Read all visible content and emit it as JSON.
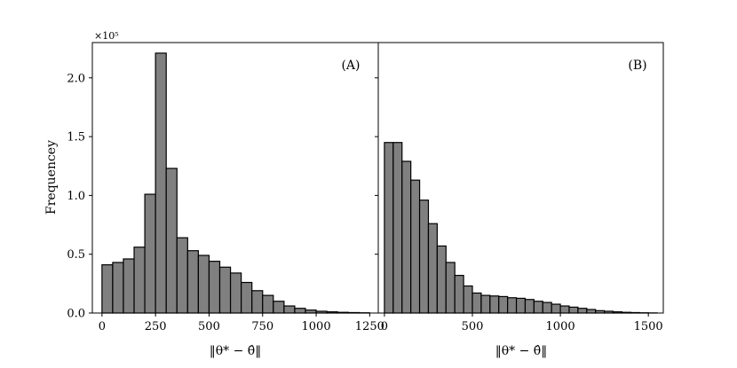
{
  "chart_data": [
    {
      "type": "bar",
      "panel_label": "(A)",
      "xlabel": "‖θ* − θ̂‖",
      "ylabel": "Frequencey",
      "y_multiplier": "×10⁵",
      "xlim": [
        -45,
        1290
      ],
      "ylim": [
        0,
        2.3
      ],
      "xticks": [
        "0",
        "250",
        "500",
        "750",
        "1000",
        "1250"
      ],
      "yticks": [
        "0.0",
        "0.5",
        "1.0",
        "1.5",
        "2.0"
      ],
      "bin_width": 50,
      "bin_starts": [
        0,
        50,
        100,
        150,
        200,
        250,
        300,
        350,
        400,
        450,
        500,
        550,
        600,
        650,
        700,
        750,
        800,
        850,
        900,
        950,
        1000,
        1050,
        1100,
        1150,
        1200
      ],
      "values": [
        0.41,
        0.43,
        0.46,
        0.56,
        1.01,
        2.21,
        1.23,
        0.64,
        0.53,
        0.49,
        0.44,
        0.39,
        0.34,
        0.26,
        0.19,
        0.15,
        0.1,
        0.06,
        0.04,
        0.025,
        0.015,
        0.01,
        0.006,
        0.004,
        0.002
      ]
    },
    {
      "type": "bar",
      "panel_label": "(B)",
      "xlabel": "‖θ* − θ̂‖",
      "ylabel": "",
      "xlim": [
        -35,
        1585
      ],
      "ylim": [
        0,
        2.3
      ],
      "xticks": [
        "0",
        "500",
        "1000",
        "1500"
      ],
      "bin_width": 50,
      "bin_starts": [
        0,
        50,
        100,
        150,
        200,
        250,
        300,
        350,
        400,
        450,
        500,
        550,
        600,
        650,
        700,
        750,
        800,
        850,
        900,
        950,
        1000,
        1050,
        1100,
        1150,
        1200,
        1250,
        1300,
        1350,
        1400,
        1450,
        1500
      ],
      "values": [
        1.45,
        1.45,
        1.29,
        1.13,
        0.96,
        0.76,
        0.57,
        0.43,
        0.32,
        0.23,
        0.17,
        0.15,
        0.145,
        0.14,
        0.13,
        0.125,
        0.115,
        0.1,
        0.09,
        0.075,
        0.06,
        0.05,
        0.04,
        0.03,
        0.02,
        0.015,
        0.01,
        0.006,
        0.004,
        0.002,
        0.001
      ]
    }
  ]
}
